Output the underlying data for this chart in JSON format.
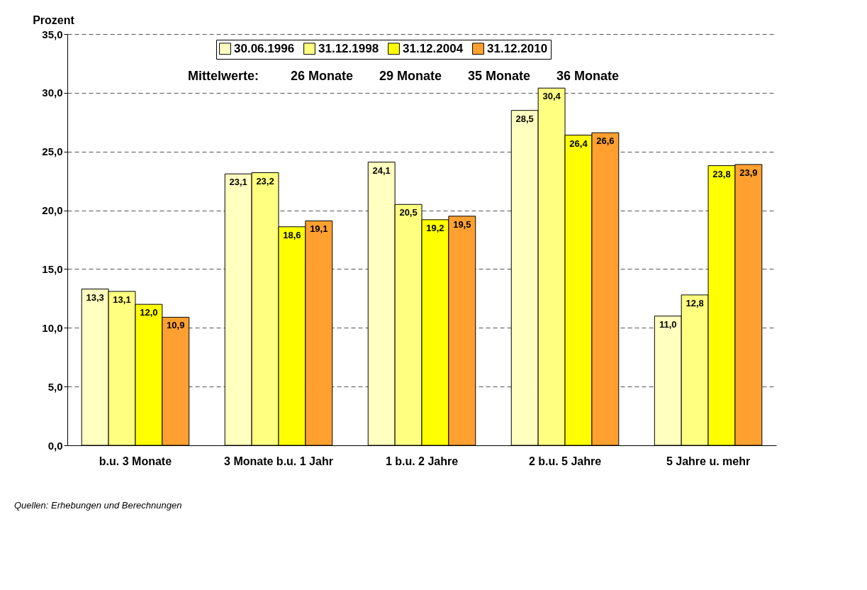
{
  "chart_data": {
    "type": "bar",
    "ylabel": "Prozent",
    "categories": [
      "b.u. 3 Monate",
      "3 Monate b.u. 1 Jahr",
      "1 b.u. 2 Jahre",
      "2 b.u. 5 Jahre",
      "5 Jahre u. mehr"
    ],
    "series": [
      {
        "name": "30.06.1996",
        "color": "#ffffc0",
        "values": [
          13.3,
          23.1,
          24.1,
          28.5,
          11.0
        ]
      },
      {
        "name": "31.12.1998",
        "color": "#ffff80",
        "values": [
          13.1,
          23.2,
          20.5,
          30.4,
          12.8
        ]
      },
      {
        "name": "31.12.2004",
        "color": "#ffff00",
        "values": [
          12.0,
          18.6,
          19.2,
          26.4,
          23.8
        ]
      },
      {
        "name": "31.12.2010",
        "color": "#ffa030",
        "values": [
          10.9,
          19.1,
          19.5,
          26.6,
          23.9
        ]
      }
    ],
    "ylim": [
      0,
      35
    ],
    "yticks": [
      {
        "value": 0,
        "label": "0,0"
      },
      {
        "value": 5,
        "label": "5,0"
      },
      {
        "value": 10,
        "label": "10,0"
      },
      {
        "value": 15,
        "label": "15,0"
      },
      {
        "value": 20,
        "label": "20,0"
      },
      {
        "value": 25,
        "label": "25,0"
      },
      {
        "value": 30,
        "label": "30,0"
      },
      {
        "value": 35,
        "label": "35,0"
      }
    ],
    "value_labels": [
      [
        "13,3",
        "23,1",
        "24,1",
        "28,5",
        "11,0"
      ],
      [
        "13,1",
        "23,2",
        "20,5",
        "30,4",
        "12,8"
      ],
      [
        "12,0",
        "18,6",
        "19,2",
        "26,4",
        "23,8"
      ],
      [
        "10,9",
        "19,1",
        "19,5",
        "26,6",
        "23,9"
      ]
    ],
    "grid": "y",
    "legend": "top",
    "annotations": [
      "Mittelwerte:",
      "26 Monate",
      "29 Monate",
      "35 Monate",
      "36 Monate",
      "Quellen: Erhebungen und Berechnungen"
    ]
  }
}
